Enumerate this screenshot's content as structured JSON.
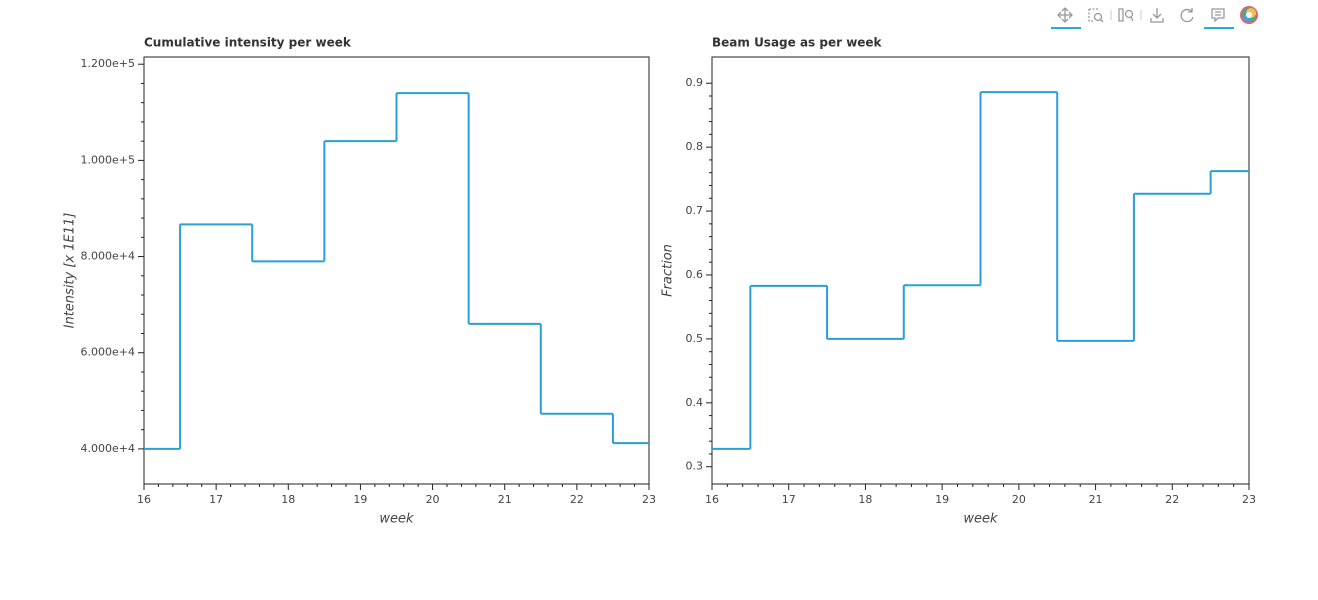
{
  "chart_data": [
    {
      "type": "step",
      "title": "Cumulative intensity per week",
      "xlabel": "week",
      "ylabel": "Intensity [x 1E11]",
      "x": [
        16,
        17,
        18,
        19,
        20,
        21,
        22,
        23
      ],
      "values": [
        40000,
        86700,
        79000,
        104000,
        114000,
        66000,
        47300,
        41200
      ],
      "color": "#2a9fd6",
      "xlim": [
        16,
        23
      ],
      "xticks": [
        16,
        17,
        18,
        19,
        20,
        21,
        22,
        23
      ],
      "ylim": [
        32700,
        121500
      ],
      "yticks": [
        {
          "value": 40000,
          "label": "4.000e+4"
        },
        {
          "value": 60000,
          "label": "6.000e+4"
        },
        {
          "value": 80000,
          "label": "8.000e+4"
        },
        {
          "value": 100000,
          "label": "1.000e+5"
        },
        {
          "value": 120000,
          "label": "1.200e+5"
        }
      ]
    },
    {
      "type": "step",
      "title": "Beam Usage as per week",
      "xlabel": "week",
      "ylabel": "Fraction",
      "x": [
        16,
        17,
        18,
        19,
        20,
        21,
        22,
        23
      ],
      "values": [
        0.328,
        0.583,
        0.5,
        0.584,
        0.886,
        0.497,
        0.727,
        0.7625
      ],
      "color": "#2a9fd6",
      "xlim": [
        16,
        23
      ],
      "xticks": [
        16,
        17,
        18,
        19,
        20,
        21,
        22,
        23
      ],
      "ylim": [
        0.273,
        0.941
      ],
      "yticks": [
        0.3,
        0.4,
        0.5,
        0.6,
        0.7,
        0.8,
        0.9
      ]
    }
  ]
}
